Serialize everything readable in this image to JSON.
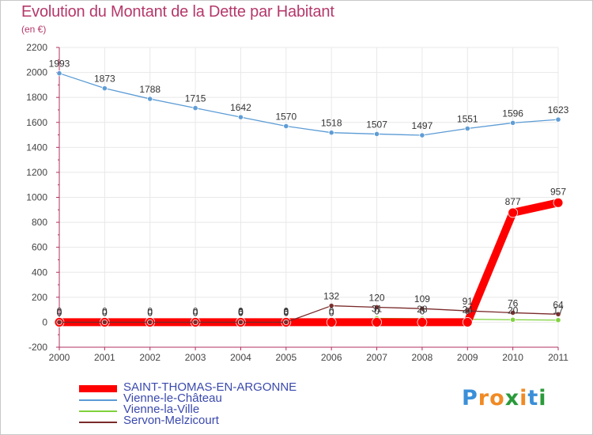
{
  "header": {
    "title": "Evolution du Montant de la Dette par Habitant",
    "unit": "(en €)"
  },
  "logo": {
    "letters": [
      "P",
      "r",
      "o",
      "x",
      "i",
      "t",
      "i"
    ],
    "colors": [
      "#3a8fd8",
      "#f08a24",
      "#f08a24",
      "#2a9a3a",
      "#f08a24",
      "#3a8fd8",
      "#2a9a3a"
    ]
  },
  "chart_data": {
    "type": "line",
    "title": "Evolution du Montant de la Dette par Habitant",
    "ylabel": "(en €)",
    "xlabel": "",
    "x": [
      "2000",
      "2001",
      "2002",
      "2003",
      "2004",
      "2005",
      "2006",
      "2007",
      "2008",
      "2009",
      "2010",
      "2011"
    ],
    "ylim": [
      -200,
      2200
    ],
    "yticks": [
      "-200",
      "0",
      "200",
      "400",
      "600",
      "800",
      "1000",
      "1200",
      "1400",
      "1600",
      "1800",
      "2000",
      "2200"
    ],
    "grid": true,
    "legend_position": "bottom-left",
    "series": [
      {
        "name": "SAINT-THOMAS-EN-ARGONNE",
        "color": "#ff0000",
        "values": [
          0,
          0,
          0,
          0,
          0,
          0,
          0,
          0,
          0,
          0,
          877,
          957
        ],
        "labels": [
          "0",
          "0",
          "0",
          "0",
          "0",
          "0",
          "0",
          "0",
          "0",
          "0",
          "877",
          "957"
        ]
      },
      {
        "name": "Vienne-le-Château",
        "color": "#5b9bd5",
        "values": [
          1993,
          1873,
          1788,
          1715,
          1642,
          1570,
          1518,
          1507,
          1497,
          1551,
          1596,
          1623
        ],
        "labels": [
          "1993",
          "1873",
          "1788",
          "1715",
          "1642",
          "1570",
          "1518",
          "1507",
          "1497",
          "1551",
          "1596",
          "1623"
        ]
      },
      {
        "name": "Vienne-la-Ville",
        "color": "#7fd13b",
        "values": [
          0,
          0,
          0,
          0,
          6,
          6,
          0,
          31,
          28,
          24,
          20,
          17
        ],
        "labels": [
          "0",
          "0",
          "0",
          "0",
          "6",
          "6",
          "0",
          "31",
          "28",
          "24",
          "20",
          "17"
        ]
      },
      {
        "name": "Servon-Melzicourt",
        "color": "#7a2a2a",
        "values": [
          0,
          0,
          0,
          0,
          0,
          0,
          132,
          120,
          109,
          91,
          76,
          64
        ],
        "labels": [
          "0",
          "0",
          "0",
          "0",
          "0",
          "0",
          "132",
          "120",
          "109",
          "91",
          "76",
          "64"
        ]
      }
    ]
  }
}
